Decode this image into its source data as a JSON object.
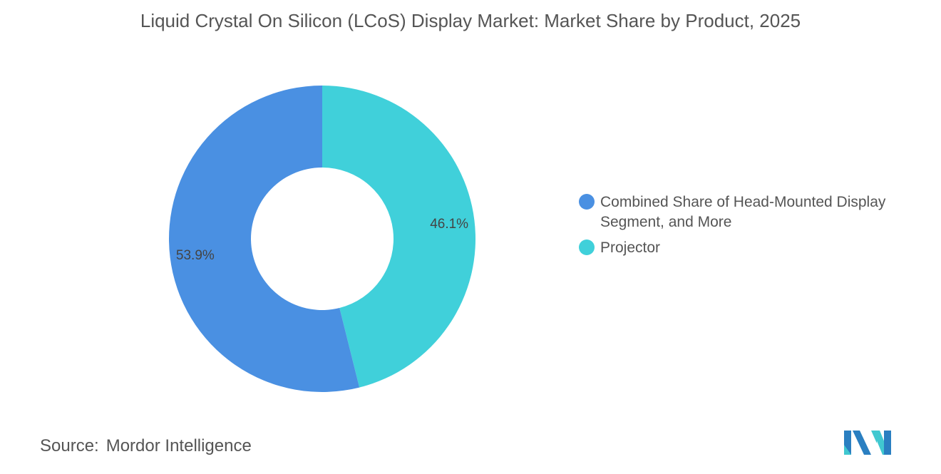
{
  "title": "Liquid Crystal On Silicon (LCoS) Display Market: Market Share by Product, 2025",
  "chart_data": {
    "type": "pie",
    "donut": true,
    "title": "Liquid Crystal On Silicon (LCoS) Display Market: Market Share by Product, 2025",
    "categories": [
      "Projector",
      "Combined Share of Head-Mounted Display Segment, and More"
    ],
    "values": [
      46.1,
      53.9
    ],
    "labels": [
      "46.1%",
      "53.9%"
    ],
    "colors": [
      "#40D0DA",
      "#4A90E2"
    ],
    "legend_position": "right"
  },
  "legend": [
    {
      "label": "Combined Share of Head-Mounted Display Segment, and More",
      "color": "#4A90E2"
    },
    {
      "label": "Projector",
      "color": "#40D0DA"
    }
  ],
  "source": {
    "label": "Source:",
    "value": "Mordor Intelligence"
  },
  "logo": {
    "text": "Mordor Intelligence",
    "colors": [
      "#2A7FC1",
      "#40C8D0"
    ]
  }
}
